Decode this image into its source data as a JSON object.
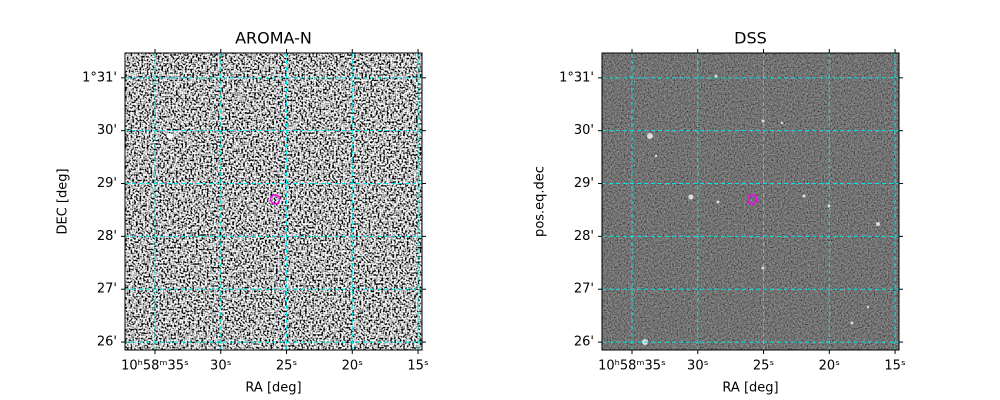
{
  "chart_data": [
    {
      "type": "image",
      "title": "AROMA-N",
      "x_label": "RA [deg]",
      "y_label": "DEC [deg]",
      "xlim": [
        37.28,
        14.7
      ],
      "ylim": [
        25.85,
        31.47
      ],
      "xticks": [
        {
          "value": 35,
          "label": "10ʰ58ᵐ35ˢ"
        },
        {
          "value": 30,
          "label": "30ˢ"
        },
        {
          "value": 25,
          "label": "25ˢ"
        },
        {
          "value": 20,
          "label": "20ˢ"
        },
        {
          "value": 15,
          "label": "15ˢ"
        }
      ],
      "yticks": [
        {
          "value": 31,
          "label": "1°31'"
        },
        {
          "value": 30,
          "label": "30'"
        },
        {
          "value": 29,
          "label": "29'"
        },
        {
          "value": 28,
          "label": "28'"
        },
        {
          "value": 27,
          "label": "27'"
        },
        {
          "value": 26,
          "label": "26'"
        }
      ],
      "grid": true,
      "grid_color": "#00e5e5",
      "marker": {
        "x": 25.86,
        "y": 28.7,
        "color": "#ff00ff"
      }
    },
    {
      "type": "image",
      "title": "DSS",
      "x_label": "RA [deg]",
      "y_label": "pos.eq.dec",
      "xlim": [
        37.28,
        14.7
      ],
      "ylim": [
        25.85,
        31.47
      ],
      "xticks": [
        {
          "value": 35,
          "label": "10ʰ58ᵐ35ˢ"
        },
        {
          "value": 30,
          "label": "30ˢ"
        },
        {
          "value": 25,
          "label": "25ˢ"
        },
        {
          "value": 20,
          "label": "20ˢ"
        },
        {
          "value": 15,
          "label": "15ˢ"
        }
      ],
      "yticks": [
        {
          "value": 31,
          "label": "1°31'"
        },
        {
          "value": 30,
          "label": "30'"
        },
        {
          "value": 29,
          "label": "29'"
        },
        {
          "value": 28,
          "label": "28'"
        },
        {
          "value": 27,
          "label": "27'"
        },
        {
          "value": 26,
          "label": "26'"
        }
      ],
      "grid": true,
      "grid_color": "#00e5e5",
      "marker": {
        "x": 25.86,
        "y": 28.7,
        "color": "#ff00ff"
      }
    }
  ]
}
